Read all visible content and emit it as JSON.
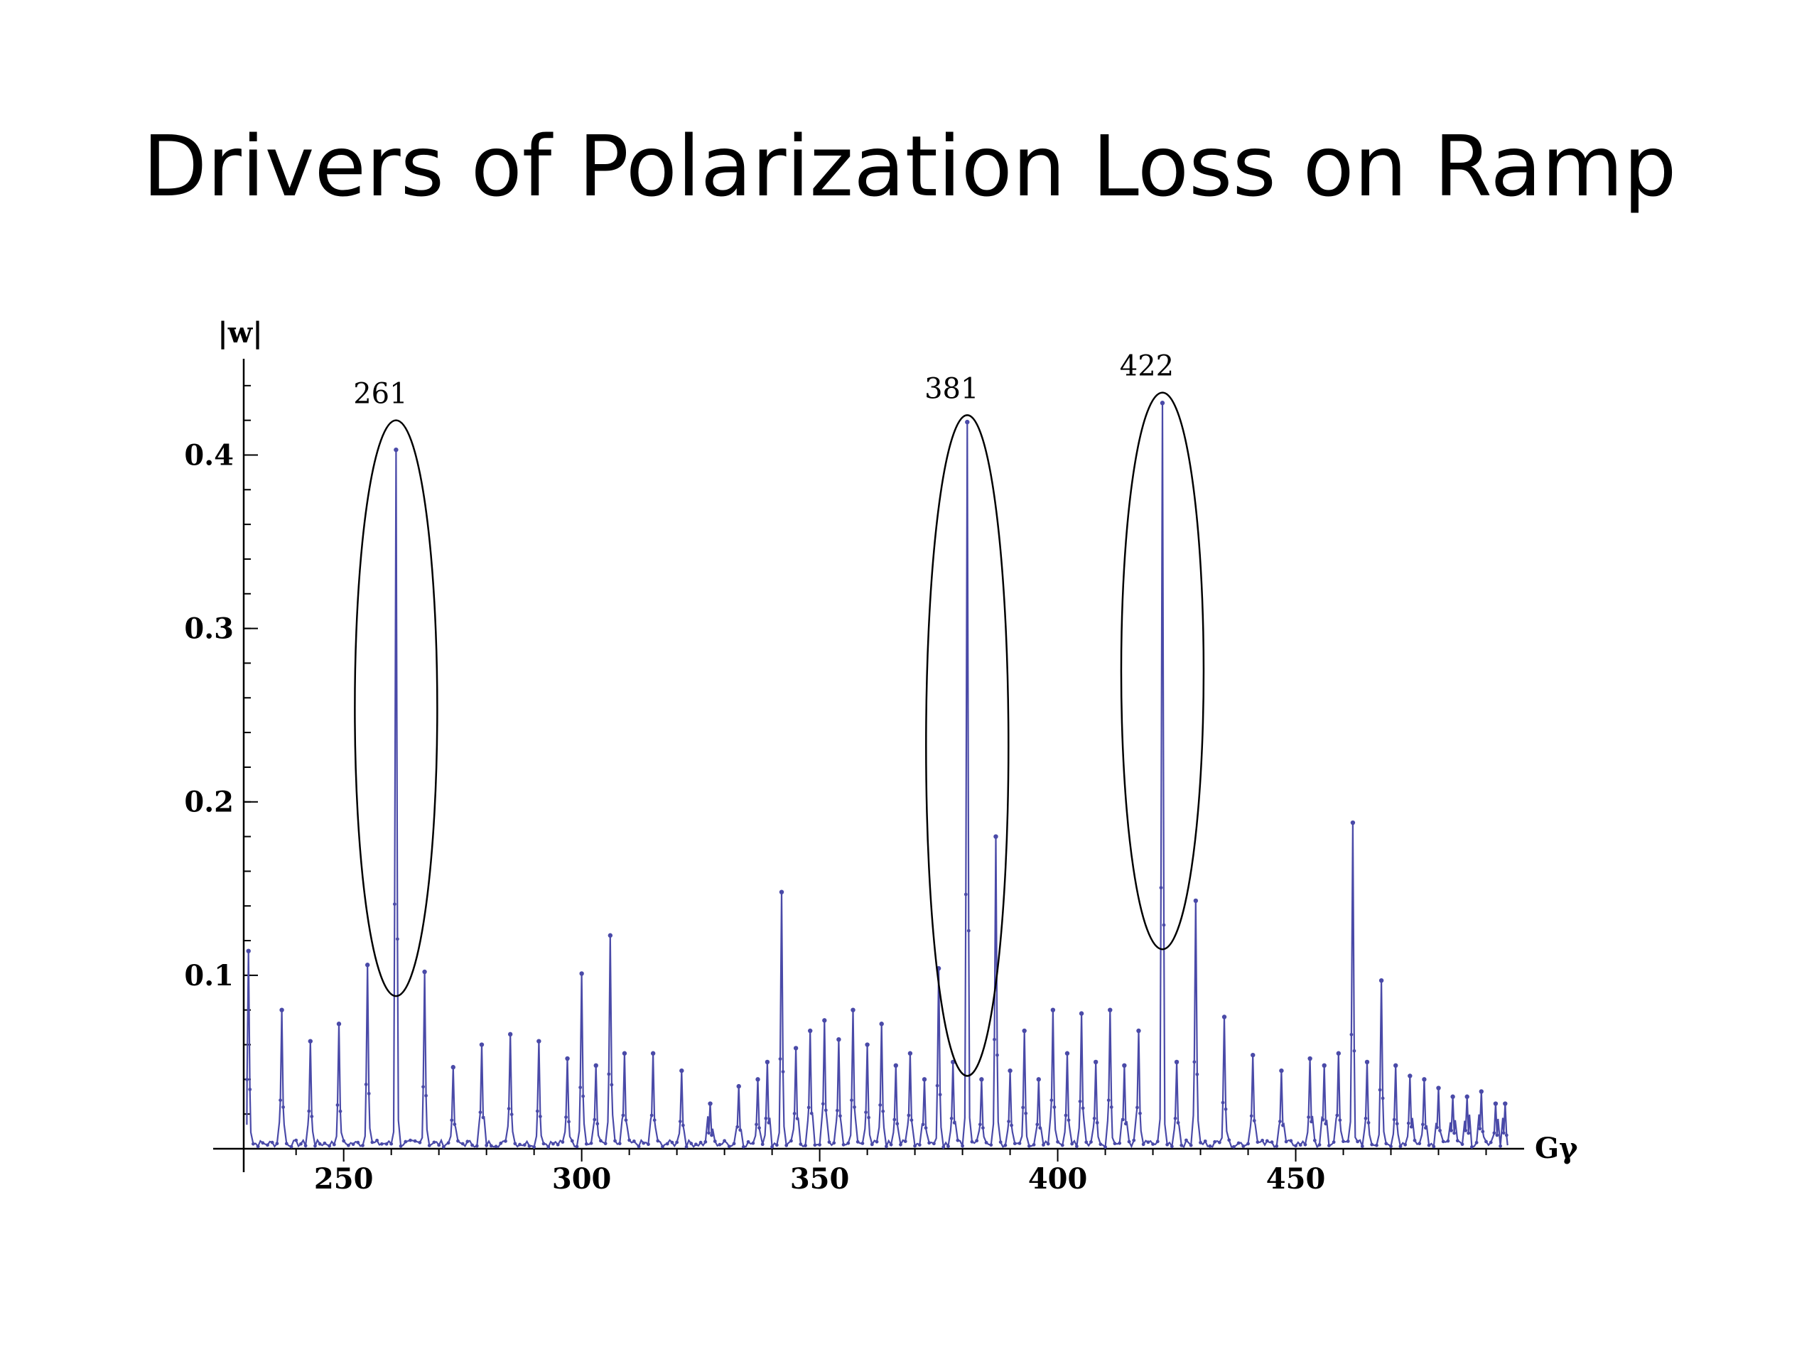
{
  "slide": {
    "title": "Drivers of Polarization Loss on Ramp"
  },
  "chart_data": {
    "type": "line",
    "xlabel": "Gγ",
    "ylabel": "|w|",
    "xlim": [
      229,
      495
    ],
    "ylim": [
      0,
      0.46
    ],
    "x_ticks": [
      {
        "value": 250,
        "label": "250"
      },
      {
        "value": 300,
        "label": "300"
      },
      {
        "value": 350,
        "label": "350"
      },
      {
        "value": 400,
        "label": "400"
      },
      {
        "value": 450,
        "label": "450"
      }
    ],
    "y_ticks": [
      {
        "value": 0.1,
        "label": "0.1"
      },
      {
        "value": 0.2,
        "label": "0.2"
      },
      {
        "value": 0.3,
        "label": "0.3"
      },
      {
        "value": 0.4,
        "label": "0.4"
      }
    ],
    "series_color": "#4a4aa8",
    "peaks": [
      {
        "x": 230,
        "y": 0.114
      },
      {
        "x": 237,
        "y": 0.08
      },
      {
        "x": 243,
        "y": 0.062
      },
      {
        "x": 249,
        "y": 0.072
      },
      {
        "x": 255,
        "y": 0.106
      },
      {
        "x": 261,
        "y": 0.403
      },
      {
        "x": 267,
        "y": 0.102
      },
      {
        "x": 273,
        "y": 0.047
      },
      {
        "x": 279,
        "y": 0.06
      },
      {
        "x": 285,
        "y": 0.066
      },
      {
        "x": 291,
        "y": 0.062
      },
      {
        "x": 297,
        "y": 0.052
      },
      {
        "x": 300,
        "y": 0.101
      },
      {
        "x": 303,
        "y": 0.048
      },
      {
        "x": 306,
        "y": 0.123
      },
      {
        "x": 309,
        "y": 0.055
      },
      {
        "x": 315,
        "y": 0.055
      },
      {
        "x": 321,
        "y": 0.045
      },
      {
        "x": 327,
        "y": 0.026
      },
      {
        "x": 333,
        "y": 0.036
      },
      {
        "x": 337,
        "y": 0.04
      },
      {
        "x": 339,
        "y": 0.05
      },
      {
        "x": 342,
        "y": 0.148
      },
      {
        "x": 345,
        "y": 0.058
      },
      {
        "x": 348,
        "y": 0.068
      },
      {
        "x": 351,
        "y": 0.074
      },
      {
        "x": 354,
        "y": 0.063
      },
      {
        "x": 357,
        "y": 0.08
      },
      {
        "x": 360,
        "y": 0.06
      },
      {
        "x": 363,
        "y": 0.072
      },
      {
        "x": 366,
        "y": 0.048
      },
      {
        "x": 369,
        "y": 0.055
      },
      {
        "x": 372,
        "y": 0.04
      },
      {
        "x": 375,
        "y": 0.104
      },
      {
        "x": 378,
        "y": 0.05
      },
      {
        "x": 381,
        "y": 0.419
      },
      {
        "x": 384,
        "y": 0.04
      },
      {
        "x": 387,
        "y": 0.18
      },
      {
        "x": 390,
        "y": 0.045
      },
      {
        "x": 393,
        "y": 0.068
      },
      {
        "x": 396,
        "y": 0.04
      },
      {
        "x": 399,
        "y": 0.08
      },
      {
        "x": 402,
        "y": 0.055
      },
      {
        "x": 405,
        "y": 0.078
      },
      {
        "x": 408,
        "y": 0.05
      },
      {
        "x": 411,
        "y": 0.08
      },
      {
        "x": 414,
        "y": 0.048
      },
      {
        "x": 417,
        "y": 0.068
      },
      {
        "x": 422,
        "y": 0.43
      },
      {
        "x": 425,
        "y": 0.05
      },
      {
        "x": 429,
        "y": 0.143
      },
      {
        "x": 435,
        "y": 0.076
      },
      {
        "x": 441,
        "y": 0.054
      },
      {
        "x": 447,
        "y": 0.045
      },
      {
        "x": 453,
        "y": 0.052
      },
      {
        "x": 456,
        "y": 0.048
      },
      {
        "x": 459,
        "y": 0.055
      },
      {
        "x": 462,
        "y": 0.188
      },
      {
        "x": 465,
        "y": 0.05
      },
      {
        "x": 468,
        "y": 0.097
      },
      {
        "x": 471,
        "y": 0.048
      },
      {
        "x": 474,
        "y": 0.042
      },
      {
        "x": 477,
        "y": 0.04
      },
      {
        "x": 480,
        "y": 0.035
      },
      {
        "x": 483,
        "y": 0.03
      },
      {
        "x": 486,
        "y": 0.03
      },
      {
        "x": 489,
        "y": 0.033
      },
      {
        "x": 492,
        "y": 0.026
      },
      {
        "x": 494,
        "y": 0.026
      }
    ],
    "annotations": [
      {
        "label": "261",
        "x": 261,
        "y_top": 0.42,
        "y_bottom": 0.088
      },
      {
        "label": "381",
        "x": 381,
        "y_top": 0.423,
        "y_bottom": 0.042
      },
      {
        "label": "422",
        "x": 422,
        "y_top": 0.436,
        "y_bottom": 0.115
      }
    ]
  }
}
